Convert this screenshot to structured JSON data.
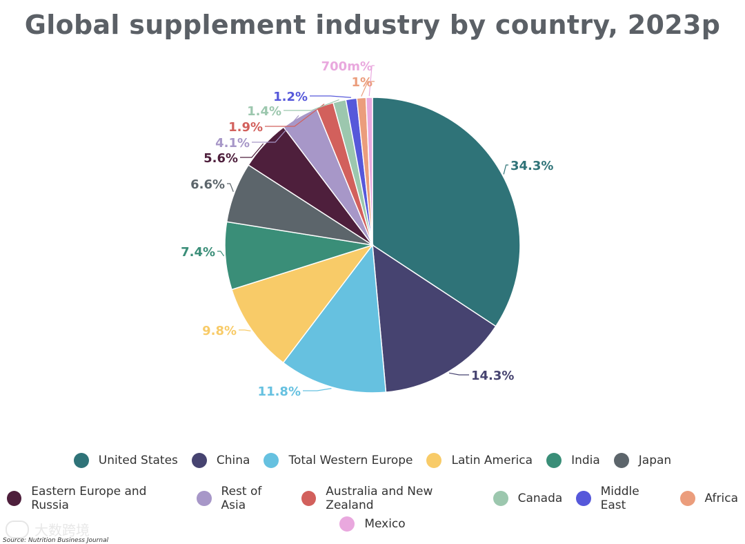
{
  "title": "Global supplement industry by country, 2023p",
  "chart_data": {
    "type": "pie",
    "title": "Global supplement industry by country, 2023p",
    "slices": [
      {
        "name": "United States",
        "value": 34.3,
        "label": "34.3%",
        "color": "#2f7378"
      },
      {
        "name": "China",
        "value": 14.3,
        "label": "14.3%",
        "color": "#464370"
      },
      {
        "name": "Total Western Europe",
        "value": 11.8,
        "label": "11.8%",
        "color": "#66c1e0"
      },
      {
        "name": "Latin America",
        "value": 9.8,
        "label": "9.8%",
        "color": "#f8cb68"
      },
      {
        "name": "India",
        "value": 7.4,
        "label": "7.4%",
        "color": "#3a8e78"
      },
      {
        "name": "Japan",
        "value": 6.6,
        "label": "6.6%",
        "color": "#5c656b"
      },
      {
        "name": "Eastern Europe and Russia",
        "value": 5.6,
        "label": "5.6%",
        "color": "#4e1f3c"
      },
      {
        "name": "Rest of Asia",
        "value": 4.1,
        "label": "4.1%",
        "color": "#a797c8"
      },
      {
        "name": "Australia and New Zealand",
        "value": 1.9,
        "label": "1.9%",
        "color": "#d2605c"
      },
      {
        "name": "Canada",
        "value": 1.4,
        "label": "1.4%",
        "color": "#9cc7ae"
      },
      {
        "name": "Middle East",
        "value": 1.2,
        "label": "1.2%",
        "color": "#5658da"
      },
      {
        "name": "Africa",
        "value": 1.0,
        "label": "1%",
        "color": "#eb9d7c"
      },
      {
        "name": "Mexico",
        "value": 0.7,
        "label": "700m%",
        "color": "#e9a8de"
      }
    ],
    "legend_position": "bottom"
  },
  "legend": {
    "rows": [
      [
        "United States",
        "China",
        "Total Western Europe",
        "Latin America",
        "India",
        "Japan"
      ],
      [
        "Eastern Europe and Russia",
        "Rest of Asia",
        "Australia and New Zealand",
        "Canada",
        "Middle East",
        "Africa"
      ],
      [
        "Mexico"
      ]
    ]
  },
  "watermark": {
    "text": "大数跨境"
  },
  "source": "Source: Nutrition Business Journal"
}
